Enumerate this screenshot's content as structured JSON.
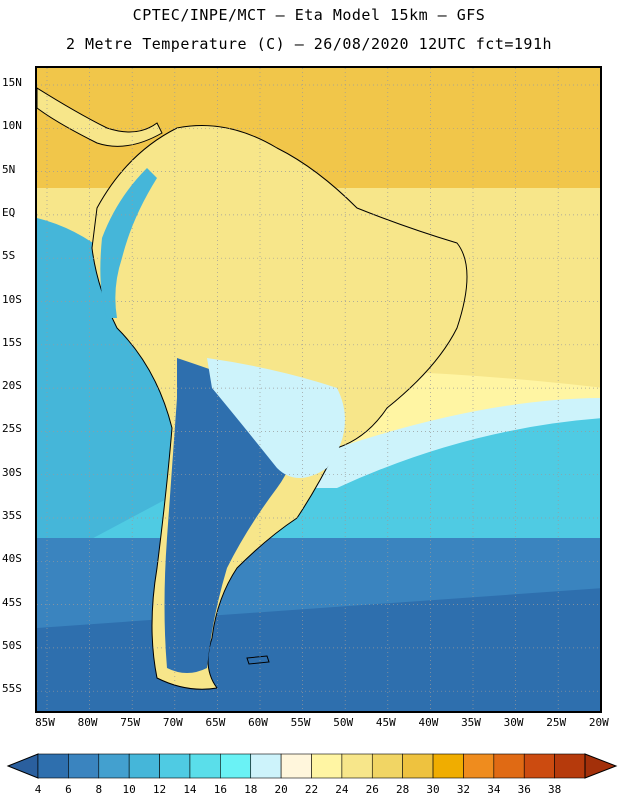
{
  "header": {
    "line1": "CPTEC/INPE/MCT –  Eta Model 15km – GFS",
    "line2": "2 Metre Temperature (C) – 26/08/2020 12UTC fct=191h"
  },
  "lat_labels": [
    "15N",
    "10N",
    "5N",
    "EQ",
    "5S",
    "10S",
    "15S",
    "20S",
    "25S",
    "30S",
    "35S",
    "40S",
    "45S",
    "50S",
    "55S"
  ],
  "lon_labels": [
    "85W",
    "80W",
    "75W",
    "70W",
    "65W",
    "60W",
    "55W",
    "50W",
    "45W",
    "40W",
    "35W",
    "30W",
    "25W",
    "20W"
  ],
  "colorbar": {
    "labels": [
      "4",
      "6",
      "8",
      "10",
      "12",
      "14",
      "16",
      "18",
      "20",
      "22",
      "24",
      "26",
      "28",
      "30",
      "32",
      "34",
      "36",
      "38"
    ],
    "colors": [
      "#2e6fae",
      "#3a84bf",
      "#43a0cf",
      "#45b6d9",
      "#4fcbe3",
      "#5adeea",
      "#6af2f5",
      "#cdf3fb",
      "#fff6dc",
      "#fff5a3",
      "#f7e68a",
      "#f1d564",
      "#eec23f",
      "#f0ad00",
      "#ef8c1e",
      "#e06a14",
      "#cc4b10",
      "#b63a0c"
    ]
  },
  "map": {
    "land_colors": {
      "cold": "#2e6fae",
      "cool": "#45b6d9",
      "mild": "#cdf3fb",
      "warm": "#f7e68a"
    },
    "ocean_colors": {
      "tropical": "#f1c64a",
      "subtropical": "#fff5a3",
      "temperate": "#45b6d9",
      "cold": "#2e6fae"
    }
  }
}
